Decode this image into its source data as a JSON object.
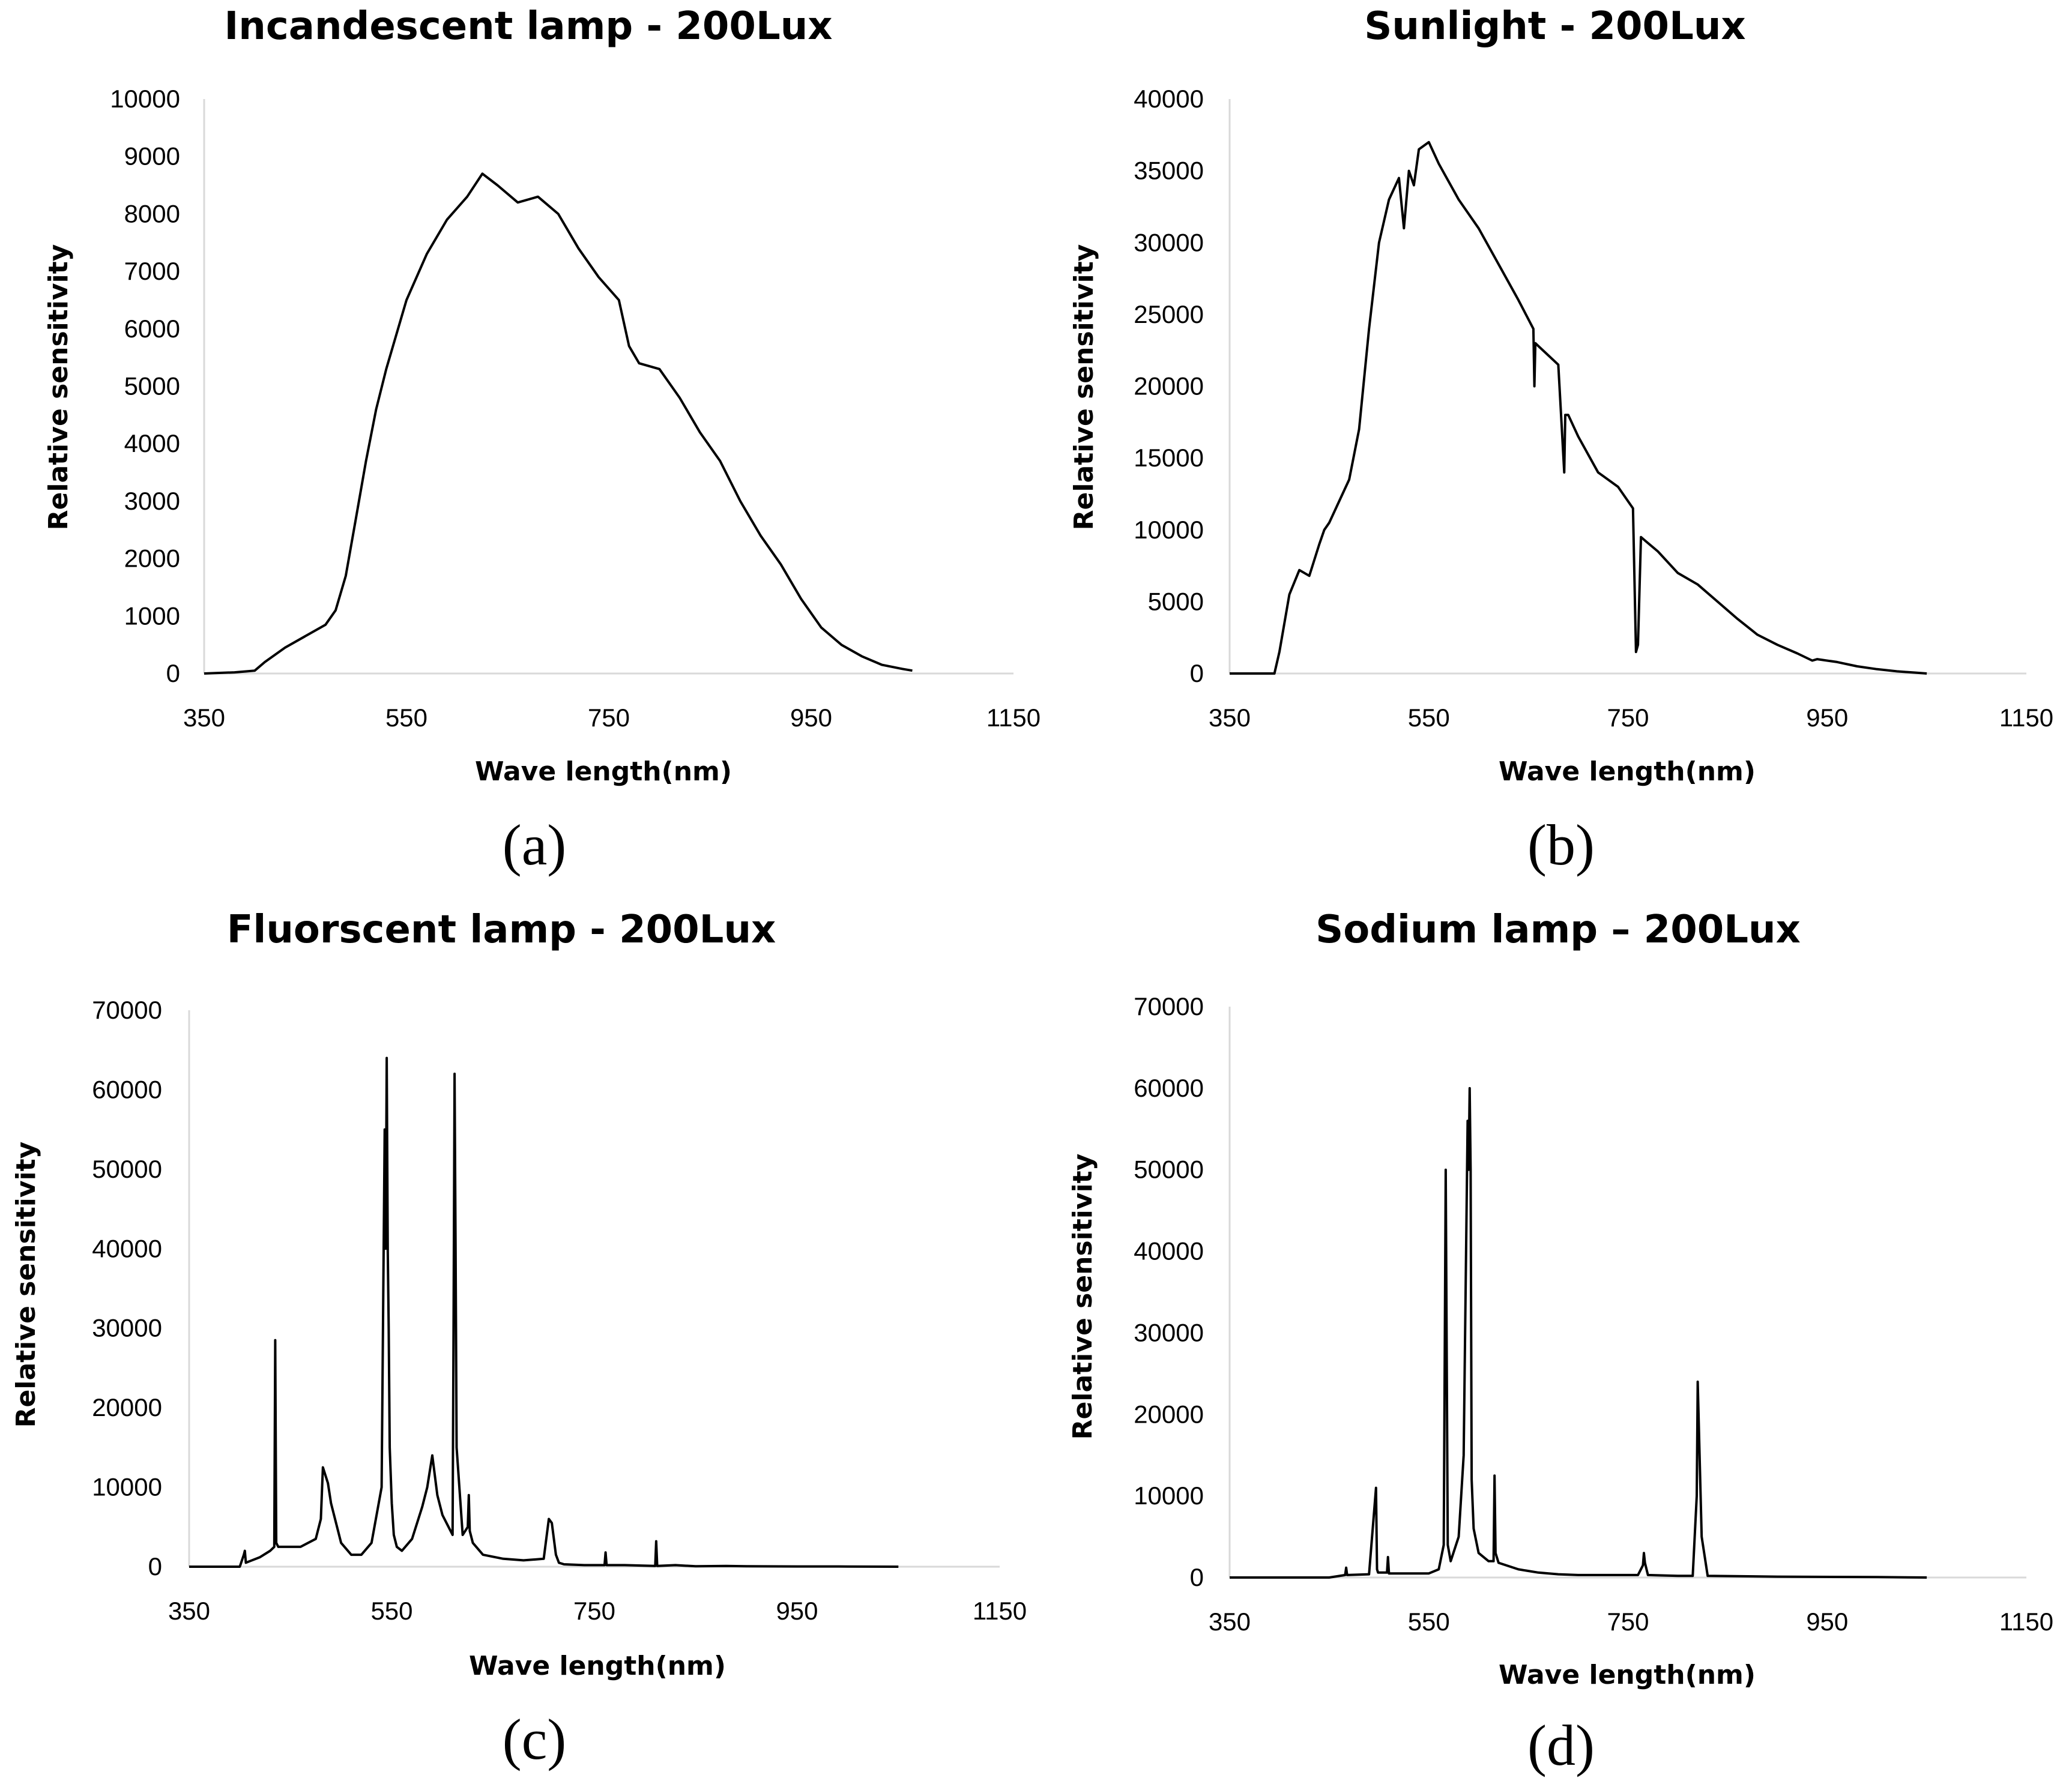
{
  "chart_data": [
    {
      "type": "line",
      "panel": "(a)",
      "title": "Incandescent lamp - 200Lux",
      "xlabel": "Wave length(nm)",
      "ylabel": "Relative sensitivity",
      "xlim": [
        350,
        1150
      ],
      "ylim": [
        0,
        10000
      ],
      "xticks": [
        350,
        550,
        750,
        950,
        1150
      ],
      "yticks": [
        0,
        1000,
        2000,
        3000,
        4000,
        5000,
        6000,
        7000,
        8000,
        9000,
        10000
      ],
      "grid": false,
      "series": [
        {
          "name": "Incandescent lamp",
          "x": [
            350,
            380,
            400,
            410,
            430,
            450,
            470,
            480,
            490,
            500,
            510,
            520,
            530,
            550,
            570,
            590,
            610,
            625,
            640,
            660,
            680,
            700,
            720,
            740,
            760,
            770,
            780,
            800,
            820,
            840,
            860,
            880,
            900,
            920,
            940,
            960,
            980,
            1000,
            1020,
            1040,
            1050
          ],
          "y": [
            0,
            20,
            50,
            200,
            450,
            650,
            850,
            1100,
            1700,
            2700,
            3700,
            4600,
            5300,
            6500,
            7300,
            7900,
            8300,
            8700,
            8500,
            8200,
            8300,
            8000,
            7400,
            6900,
            6500,
            5700,
            5400,
            5300,
            4800,
            4200,
            3700,
            3000,
            2400,
            1900,
            1300,
            800,
            500,
            300,
            150,
            80,
            50
          ]
        }
      ]
    },
    {
      "type": "line",
      "panel": "(b)",
      "title": "Sunlight - 200Lux",
      "xlabel": "Wave length(nm)",
      "ylabel": "Relative sensitivity",
      "xlim": [
        350,
        1150
      ],
      "ylim": [
        0,
        40000
      ],
      "xticks": [
        350,
        550,
        750,
        950,
        1150
      ],
      "yticks": [
        0,
        5000,
        10000,
        15000,
        20000,
        25000,
        30000,
        35000,
        40000
      ],
      "grid": false,
      "series": [
        {
          "name": "Sunlight",
          "x": [
            350,
            395,
            400,
            410,
            420,
            430,
            440,
            445,
            450,
            460,
            470,
            480,
            490,
            495,
            500,
            505,
            510,
            520,
            525,
            530,
            535,
            540,
            550,
            560,
            580,
            600,
            620,
            640,
            655,
            656,
            657,
            660,
            680,
            686,
            687,
            690,
            700,
            720,
            740,
            755,
            758,
            760,
            763,
            768,
            780,
            800,
            820,
            840,
            860,
            880,
            900,
            920,
            935,
            940,
            960,
            980,
            1000,
            1020,
            1040,
            1050
          ],
          "y": [
            0,
            0,
            1500,
            5500,
            7200,
            6800,
            9000,
            10000,
            10500,
            12000,
            13500,
            17000,
            24000,
            27000,
            30000,
            31500,
            33000,
            34500,
            31000,
            35000,
            34000,
            36500,
            37000,
            35500,
            33000,
            31000,
            28500,
            26000,
            24000,
            20000,
            23000,
            22800,
            21500,
            14000,
            18000,
            18000,
            16500,
            14000,
            13000,
            11500,
            1500,
            2000,
            9500,
            9200,
            8500,
            7000,
            6200,
            5000,
            3800,
            2700,
            2000,
            1400,
            900,
            1000,
            800,
            500,
            300,
            150,
            50,
            0
          ]
        }
      ]
    },
    {
      "type": "line",
      "panel": "(c)",
      "title": "Fluorscent lamp - 200Lux",
      "xlabel": "Wave  length(nm)",
      "ylabel": "Relative  sensitivity",
      "xlim": [
        350,
        1150
      ],
      "ylim": [
        0,
        70000
      ],
      "xticks": [
        350,
        550,
        750,
        950,
        1150
      ],
      "yticks": [
        0,
        10000,
        20000,
        30000,
        40000,
        50000,
        60000,
        70000
      ],
      "grid": false,
      "series": [
        {
          "name": "Fluorescent lamp",
          "x": [
            350,
            400,
            404,
            405,
            406,
            410,
            420,
            430,
            434,
            435,
            436,
            438,
            440,
            460,
            475,
            480,
            482,
            487,
            490,
            500,
            510,
            520,
            530,
            540,
            543,
            544,
            545,
            546,
            547,
            548,
            550,
            552,
            555,
            560,
            570,
            580,
            585,
            590,
            595,
            600,
            610,
            611,
            612,
            613,
            614,
            620,
            625,
            626,
            627,
            630,
            640,
            660,
            680,
            700,
            705,
            708,
            712,
            715,
            720,
            740,
            760,
            761,
            762,
            780,
            810,
            811,
            812,
            830,
            850,
            880,
            900,
            950,
            1000,
            1050
          ],
          "y": [
            0,
            0,
            1500,
            2000,
            500,
            700,
            1200,
            2000,
            2500,
            28500,
            3000,
            2500,
            2500,
            2500,
            3500,
            6000,
            12500,
            10500,
            8000,
            3000,
            1500,
            1500,
            3000,
            10000,
            55000,
            40000,
            64000,
            40000,
            30000,
            15000,
            8000,
            4000,
            2500,
            2000,
            3500,
            7500,
            10000,
            14000,
            9000,
            6500,
            4000,
            30000,
            62000,
            40000,
            15000,
            4000,
            5000,
            9000,
            4500,
            3000,
            1500,
            1000,
            800,
            1000,
            6000,
            5500,
            1500,
            500,
            300,
            200,
            200,
            1800,
            200,
            200,
            100,
            3200,
            100,
            200,
            50,
            100,
            50,
            30,
            20,
            0
          ]
        }
      ]
    },
    {
      "type": "line",
      "panel": "(d)",
      "title": "Sodium lamp – 200Lux",
      "xlabel": "Wave length(nm)",
      "ylabel": "Relative sensitivity",
      "xlim": [
        350,
        1150
      ],
      "ylim": [
        0,
        70000
      ],
      "xticks": [
        350,
        550,
        750,
        950,
        1150
      ],
      "yticks": [
        0,
        10000,
        20000,
        30000,
        40000,
        50000,
        60000,
        70000
      ],
      "grid": false,
      "series": [
        {
          "name": "Sodium lamp",
          "x": [
            350,
            450,
            466,
            467,
            468,
            490,
            497,
            498,
            499,
            508,
            509,
            510,
            550,
            560,
            565,
            567,
            569,
            572,
            580,
            585,
            589,
            590,
            591,
            592,
            593,
            595,
            600,
            610,
            615,
            616,
            617,
            620,
            640,
            660,
            680,
            700,
            760,
            765,
            766,
            767,
            770,
            800,
            815,
            819,
            820,
            824,
            830,
            900,
            1000,
            1050
          ],
          "y": [
            0,
            0,
            300,
            1200,
            300,
            400,
            11000,
            1000,
            600,
            600,
            2500,
            500,
            500,
            1000,
            4000,
            50000,
            4000,
            2000,
            5000,
            15000,
            56000,
            50000,
            60000,
            50000,
            12000,
            6000,
            3000,
            2000,
            2000,
            12500,
            3000,
            1800,
            1000,
            600,
            400,
            300,
            300,
            1500,
            3000,
            1800,
            300,
            200,
            200,
            10000,
            24000,
            5000,
            200,
            100,
            50,
            0
          ]
        }
      ]
    }
  ]
}
